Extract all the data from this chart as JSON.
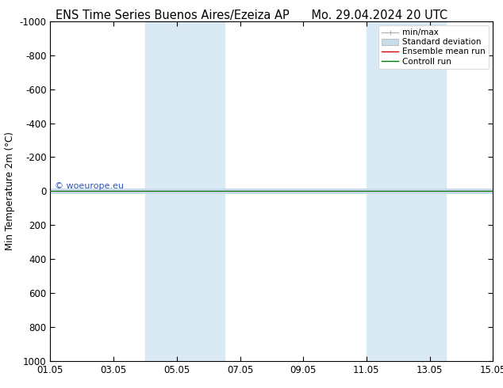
{
  "title_left": "ENS Time Series Buenos Aires/Ezeiza AP",
  "title_right": "Mo. 29.04.2024 20 UTC",
  "ylabel": "Min Temperature 2m (°C)",
  "ylim_bottom": 1000,
  "ylim_top": -1000,
  "yticks": [
    -1000,
    -800,
    -600,
    -400,
    -200,
    0,
    200,
    400,
    600,
    800,
    1000
  ],
  "xtick_labels": [
    "01.05",
    "03.05",
    "05.05",
    "07.05",
    "09.05",
    "11.05",
    "13.05",
    "15.05"
  ],
  "xtick_positions_days": [
    0,
    2,
    4,
    6,
    8,
    10,
    12,
    14
  ],
  "x_total_days": 14,
  "shade_bands": [
    {
      "x_start_days": 3.0,
      "x_end_days": 5.5
    },
    {
      "x_start_days": 10.0,
      "x_end_days": 12.5
    }
  ],
  "shade_color": "#daeaf5",
  "green_line_color": "#007700",
  "red_line_color": "#cc0000",
  "gray_line_color": "#aaaaaa",
  "stddev_color": "#c8dcea",
  "background_color": "#ffffff",
  "watermark_text": "© woeurope.eu",
  "watermark_color": "#3355bb",
  "title_fontsize": 10.5,
  "tick_fontsize": 8.5,
  "ylabel_fontsize": 8.5,
  "legend_fontsize": 7.5
}
